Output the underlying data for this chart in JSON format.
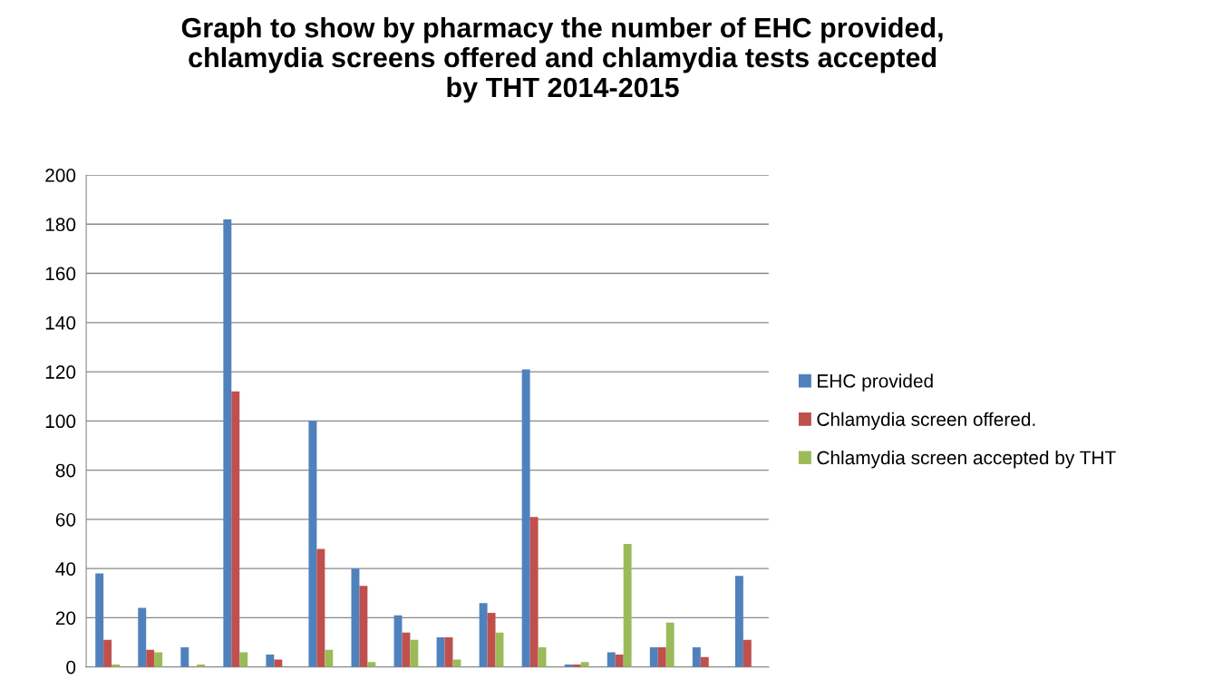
{
  "chart_data": {
    "type": "bar",
    "title": "Graph to show by pharmacy the number of EHC provided,\nchlamydia screens offered and chlamydia tests accepted\nby THT 2014-2015",
    "categories": [
      null,
      null,
      null,
      null,
      null,
      null,
      null,
      null,
      null,
      null,
      null,
      null,
      null,
      null,
      null,
      null
    ],
    "series": [
      {
        "name": "EHC provided",
        "color": "#4f81bd",
        "values": [
          38,
          24,
          8,
          182,
          5,
          100,
          40,
          21,
          12,
          26,
          121,
          1,
          6,
          8,
          8,
          37
        ]
      },
      {
        "name": "Chlamydia screen offered.",
        "color": "#c0504d",
        "values": [
          11,
          7,
          0,
          112,
          3,
          48,
          33,
          14,
          12,
          22,
          61,
          1,
          5,
          8,
          4,
          11
        ]
      },
      {
        "name": "Chlamydia screen accepted by THT",
        "color": "#9bbb59",
        "values": [
          1,
          6,
          1,
          6,
          0,
          7,
          2,
          11,
          3,
          14,
          8,
          2,
          50,
          18,
          0,
          0
        ]
      }
    ],
    "ylim": [
      0,
      200
    ],
    "yticks": [
      0,
      20,
      40,
      60,
      80,
      100,
      120,
      140,
      160,
      180,
      200
    ],
    "grid": "y",
    "legend": "right"
  }
}
